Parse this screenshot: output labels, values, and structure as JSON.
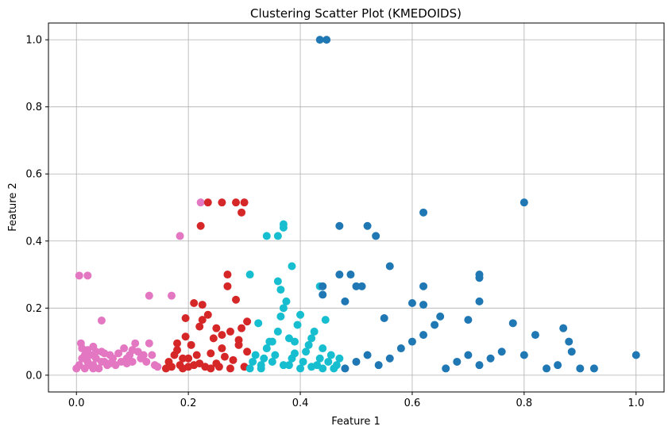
{
  "chart_data": {
    "type": "scatter",
    "title": "Clustering Scatter Plot (KMEDOIDS)",
    "xlabel": "Feature 1",
    "ylabel": "Feature 2",
    "xlim": [
      -0.05,
      1.05
    ],
    "ylim": [
      -0.05,
      1.05
    ],
    "xticks": [
      "0.0",
      "0.2",
      "0.4",
      "0.6",
      "0.8",
      "1.0"
    ],
    "yticks": [
      "0.0",
      "0.2",
      "0.4",
      "0.6",
      "0.8",
      "1.0"
    ],
    "grid": true,
    "colors": [
      "#e377c2",
      "#d62728",
      "#17becf",
      "#1f77b4"
    ],
    "series": [
      {
        "color": "#e377c2",
        "points": [
          [
            0.0,
            0.02
          ],
          [
            0.005,
            0.03
          ],
          [
            0.01,
            0.05
          ],
          [
            0.01,
            0.08
          ],
          [
            0.008,
            0.095
          ],
          [
            0.015,
            0.02
          ],
          [
            0.02,
            0.04
          ],
          [
            0.025,
            0.06
          ],
          [
            0.03,
            0.03
          ],
          [
            0.035,
            0.05
          ],
          [
            0.04,
            0.02
          ],
          [
            0.045,
            0.07
          ],
          [
            0.05,
            0.04
          ],
          [
            0.055,
            0.03
          ],
          [
            0.06,
            0.06
          ],
          [
            0.065,
            0.05
          ],
          [
            0.07,
            0.03
          ],
          [
            0.075,
            0.065
          ],
          [
            0.08,
            0.04
          ],
          [
            0.085,
            0.08
          ],
          [
            0.09,
            0.05
          ],
          [
            0.095,
            0.06
          ],
          [
            0.1,
            0.04
          ],
          [
            0.105,
            0.095
          ],
          [
            0.11,
            0.07
          ],
          [
            0.115,
            0.05
          ],
          [
            0.12,
            0.06
          ],
          [
            0.125,
            0.04
          ],
          [
            0.13,
            0.095
          ],
          [
            0.135,
            0.06
          ],
          [
            0.14,
            0.03
          ],
          [
            0.145,
            0.025
          ],
          [
            0.02,
            0.075
          ],
          [
            0.03,
            0.085
          ],
          [
            0.015,
            0.06
          ],
          [
            0.025,
            0.03
          ],
          [
            0.035,
            0.07
          ],
          [
            0.045,
            0.04
          ],
          [
            0.05,
            0.065
          ],
          [
            0.06,
            0.035
          ],
          [
            0.09,
            0.035
          ],
          [
            0.1,
            0.075
          ],
          [
            0.005,
            0.297
          ],
          [
            0.02,
            0.297
          ],
          [
            0.045,
            0.163
          ],
          [
            0.13,
            0.237
          ],
          [
            0.17,
            0.237
          ],
          [
            0.185,
            0.415
          ],
          [
            0.222,
            0.515
          ],
          [
            0.03,
            0.02
          ]
        ]
      },
      {
        "color": "#d62728",
        "points": [
          [
            0.16,
            0.02
          ],
          [
            0.165,
            0.04
          ],
          [
            0.17,
            0.025
          ],
          [
            0.175,
            0.06
          ],
          [
            0.18,
            0.075
          ],
          [
            0.18,
            0.095
          ],
          [
            0.185,
            0.03
          ],
          [
            0.19,
            0.05
          ],
          [
            0.195,
            0.115
          ],
          [
            0.195,
            0.17
          ],
          [
            0.2,
            0.025
          ],
          [
            0.205,
            0.09
          ],
          [
            0.21,
            0.215
          ],
          [
            0.215,
            0.06
          ],
          [
            0.22,
            0.035
          ],
          [
            0.22,
            0.145
          ],
          [
            0.225,
            0.165
          ],
          [
            0.225,
            0.21
          ],
          [
            0.23,
            0.025
          ],
          [
            0.235,
            0.18
          ],
          [
            0.24,
            0.065
          ],
          [
            0.245,
            0.11
          ],
          [
            0.25,
            0.035
          ],
          [
            0.255,
            0.025
          ],
          [
            0.26,
            0.08
          ],
          [
            0.265,
            0.055
          ],
          [
            0.27,
            0.3
          ],
          [
            0.27,
            0.265
          ],
          [
            0.275,
            0.13
          ],
          [
            0.28,
            0.045
          ],
          [
            0.285,
            0.225
          ],
          [
            0.29,
            0.105
          ],
          [
            0.295,
            0.14
          ],
          [
            0.3,
            0.025
          ],
          [
            0.305,
            0.07
          ],
          [
            0.305,
            0.16
          ],
          [
            0.24,
            0.02
          ],
          [
            0.26,
            0.12
          ],
          [
            0.29,
            0.09
          ],
          [
            0.2,
            0.05
          ],
          [
            0.222,
            0.445
          ],
          [
            0.235,
            0.515
          ],
          [
            0.26,
            0.515
          ],
          [
            0.285,
            0.515
          ],
          [
            0.295,
            0.485
          ],
          [
            0.3,
            0.515
          ],
          [
            0.21,
            0.03
          ],
          [
            0.25,
            0.14
          ],
          [
            0.275,
            0.02
          ],
          [
            0.19,
            0.02
          ]
        ]
      },
      {
        "color": "#17becf",
        "points": [
          [
            0.31,
            0.02
          ],
          [
            0.315,
            0.04
          ],
          [
            0.32,
            0.06
          ],
          [
            0.325,
            0.155
          ],
          [
            0.33,
            0.03
          ],
          [
            0.335,
            0.05
          ],
          [
            0.34,
            0.08
          ],
          [
            0.345,
            0.1
          ],
          [
            0.35,
            0.04
          ],
          [
            0.355,
            0.06
          ],
          [
            0.36,
            0.13
          ],
          [
            0.365,
            0.175
          ],
          [
            0.37,
            0.2
          ],
          [
            0.375,
            0.22
          ],
          [
            0.38,
            0.03
          ],
          [
            0.385,
            0.05
          ],
          [
            0.39,
            0.1
          ],
          [
            0.395,
            0.15
          ],
          [
            0.4,
            0.02
          ],
          [
            0.405,
            0.04
          ],
          [
            0.41,
            0.07
          ],
          [
            0.415,
            0.09
          ],
          [
            0.42,
            0.11
          ],
          [
            0.425,
            0.13
          ],
          [
            0.43,
            0.03
          ],
          [
            0.435,
            0.05
          ],
          [
            0.44,
            0.08
          ],
          [
            0.445,
            0.165
          ],
          [
            0.45,
            0.04
          ],
          [
            0.455,
            0.06
          ],
          [
            0.46,
            0.02
          ],
          [
            0.465,
            0.03
          ],
          [
            0.47,
            0.05
          ],
          [
            0.36,
            0.28
          ],
          [
            0.365,
            0.255
          ],
          [
            0.37,
            0.44
          ],
          [
            0.37,
            0.45
          ],
          [
            0.385,
            0.325
          ],
          [
            0.435,
            0.265
          ],
          [
            0.34,
            0.415
          ],
          [
            0.36,
            0.415
          ],
          [
            0.31,
            0.3
          ],
          [
            0.38,
            0.11
          ],
          [
            0.33,
            0.02
          ],
          [
            0.35,
            0.1
          ],
          [
            0.42,
            0.025
          ],
          [
            0.4,
            0.18
          ],
          [
            0.39,
            0.065
          ],
          [
            0.37,
            0.03
          ],
          [
            0.44,
            0.02
          ]
        ]
      },
      {
        "color": "#1f77b4",
        "points": [
          [
            0.435,
            1.0
          ],
          [
            0.447,
            1.0
          ],
          [
            0.47,
            0.445
          ],
          [
            0.52,
            0.445
          ],
          [
            0.535,
            0.415
          ],
          [
            0.44,
            0.265
          ],
          [
            0.44,
            0.24
          ],
          [
            0.47,
            0.3
          ],
          [
            0.49,
            0.3
          ],
          [
            0.5,
            0.265
          ],
          [
            0.51,
            0.265
          ],
          [
            0.56,
            0.325
          ],
          [
            0.48,
            0.22
          ],
          [
            0.62,
            0.485
          ],
          [
            0.8,
            0.515
          ],
          [
            0.72,
            0.3
          ],
          [
            0.72,
            0.29
          ],
          [
            0.72,
            0.22
          ],
          [
            0.62,
            0.265
          ],
          [
            0.6,
            0.215
          ],
          [
            0.62,
            0.21
          ],
          [
            0.48,
            0.02
          ],
          [
            0.5,
            0.04
          ],
          [
            0.52,
            0.06
          ],
          [
            0.54,
            0.03
          ],
          [
            0.56,
            0.05
          ],
          [
            0.58,
            0.08
          ],
          [
            0.6,
            0.1
          ],
          [
            0.62,
            0.12
          ],
          [
            0.64,
            0.15
          ],
          [
            0.66,
            0.02
          ],
          [
            0.68,
            0.04
          ],
          [
            0.7,
            0.06
          ],
          [
            0.72,
            0.03
          ],
          [
            0.74,
            0.05
          ],
          [
            0.76,
            0.07
          ],
          [
            0.78,
            0.155
          ],
          [
            0.8,
            0.06
          ],
          [
            0.82,
            0.12
          ],
          [
            0.84,
            0.02
          ],
          [
            0.86,
            0.03
          ],
          [
            0.88,
            0.1
          ],
          [
            0.9,
            0.02
          ],
          [
            0.925,
            0.02
          ],
          [
            0.87,
            0.14
          ],
          [
            0.885,
            0.07
          ],
          [
            1.0,
            0.06
          ],
          [
            0.7,
            0.165
          ],
          [
            0.55,
            0.17
          ],
          [
            0.65,
            0.175
          ]
        ]
      }
    ]
  }
}
